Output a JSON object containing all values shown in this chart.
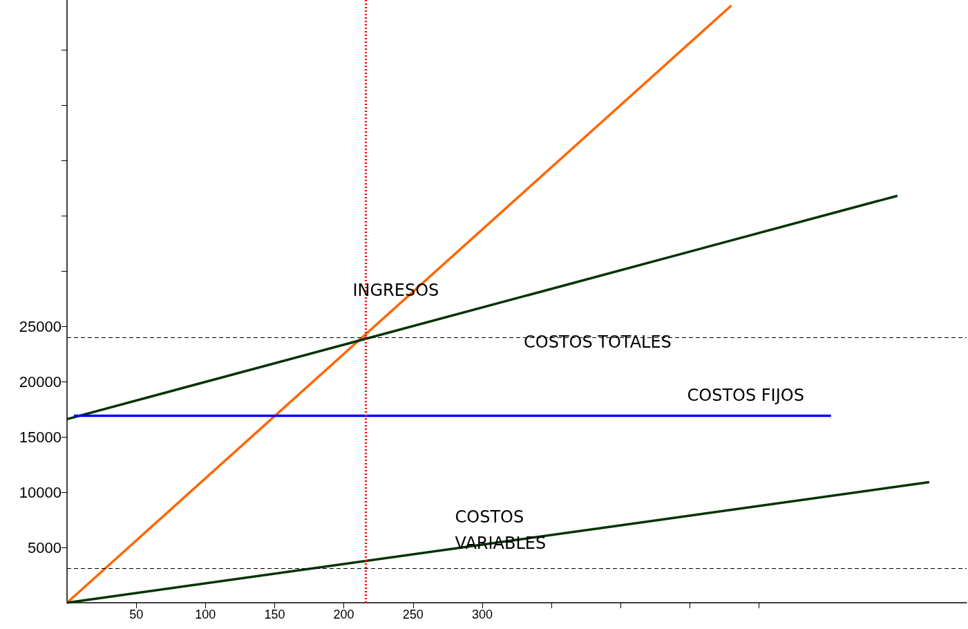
{
  "chart_data": {
    "type": "line",
    "marker": "none",
    "grid": false,
    "xlim": [
      0,
      650
    ],
    "ylim": [
      0,
      54500
    ],
    "xticks": [
      50,
      100,
      150,
      200,
      250,
      300,
      {
        "value": 350,
        "label": null
      },
      {
        "value": 400,
        "label": null
      },
      {
        "value": 450,
        "label": null
      },
      {
        "value": 500,
        "label": null
      }
    ],
    "yticks": [
      5000,
      10000,
      15000,
      20000,
      25000,
      {
        "value": 30000,
        "label": null
      },
      {
        "value": 35000,
        "label": null
      },
      {
        "value": 40000,
        "label": null
      },
      {
        "value": 45000,
        "label": null
      },
      {
        "value": 50000,
        "label": null
      }
    ],
    "series": [
      {
        "name": "INGRESOS",
        "color": "#ff6600",
        "x": [
          0,
          480
        ],
        "values": [
          0,
          54000
        ]
      },
      {
        "name": "COSTOS TOTALES",
        "color": "#003300",
        "x": [
          0,
          600
        ],
        "values": [
          16600,
          36800
        ]
      },
      {
        "name": "COSTOS FIJOS",
        "color": "#0000ff",
        "x": [
          5,
          552
        ],
        "values": [
          16900,
          16900
        ]
      },
      {
        "name": "COSTOS\nVARIABLES",
        "color": "#003300",
        "x": [
          0,
          623
        ],
        "values": [
          0,
          10900
        ]
      }
    ],
    "ref_lines": [
      {
        "axis": "x",
        "value": 216,
        "color": "#ff0000",
        "line_style": "dotted"
      },
      {
        "axis": "y",
        "value": 24000,
        "color": "#000000",
        "line_style": "dashed"
      },
      {
        "axis": "y",
        "value": 3100,
        "color": "#000000",
        "line_style": "dashed"
      }
    ]
  }
}
